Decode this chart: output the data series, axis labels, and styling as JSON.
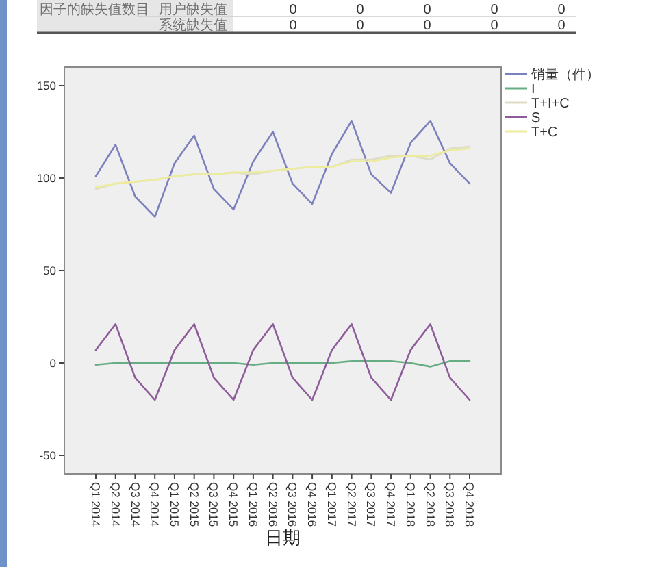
{
  "chart_data": {
    "type": "line",
    "xlabel": "日期",
    "categories": [
      "Q1 2014",
      "Q2 2014",
      "Q3 2014",
      "Q4 2014",
      "Q1 2015",
      "Q2 2015",
      "Q3 2015",
      "Q4 2015",
      "Q1 2016",
      "Q2 2016",
      "Q3 2016",
      "Q4 2016",
      "Q1 2017",
      "Q2 2017",
      "Q3 2017",
      "Q4 2017",
      "Q1 2018",
      "Q2 2018",
      "Q3 2018",
      "Q4 2018"
    ],
    "series": [
      {
        "name": "销量（件）",
        "color": "#7c80bc",
        "values": [
          101,
          118,
          90,
          79,
          108,
          123,
          94,
          83,
          109,
          125,
          97,
          86,
          113,
          131,
          102,
          92,
          119,
          131,
          108,
          97
        ]
      },
      {
        "name": "I",
        "color": "#66ad84",
        "values": [
          -1,
          0,
          0,
          0,
          0,
          0,
          0,
          0,
          -1,
          0,
          0,
          0,
          0,
          1,
          1,
          1,
          0,
          -2,
          1,
          1
        ]
      },
      {
        "name": "T+I+C",
        "color": "#deddc8",
        "values": [
          94,
          97,
          98,
          99,
          101,
          102,
          102,
          103,
          102,
          104,
          105,
          106,
          106,
          110,
          110,
          112,
          112,
          110,
          116,
          117
        ]
      },
      {
        "name": "S",
        "color": "#8e5c9a",
        "values": [
          7,
          21,
          -8,
          -20,
          7,
          21,
          -8,
          -20,
          7,
          21,
          -8,
          -20,
          7,
          21,
          -8,
          -20,
          7,
          21,
          -8,
          -20
        ]
      },
      {
        "name": "T+C",
        "color": "#ecec9c",
        "values": [
          95,
          97,
          98,
          99,
          101,
          102,
          102,
          103,
          103,
          104,
          105,
          106,
          106,
          109,
          109,
          111,
          112,
          112,
          115,
          116
        ]
      }
    ],
    "ylim": [
      -60,
      160
    ],
    "yticks": [
      -50,
      0,
      50,
      100,
      150
    ],
    "legend": "right",
    "annotations": [
      "因子的缺失值数目",
      "用户缺失值",
      "0",
      "0",
      "0",
      "0",
      "0",
      "系统缺失值",
      "0",
      "0",
      "0",
      "0",
      "0"
    ]
  }
}
